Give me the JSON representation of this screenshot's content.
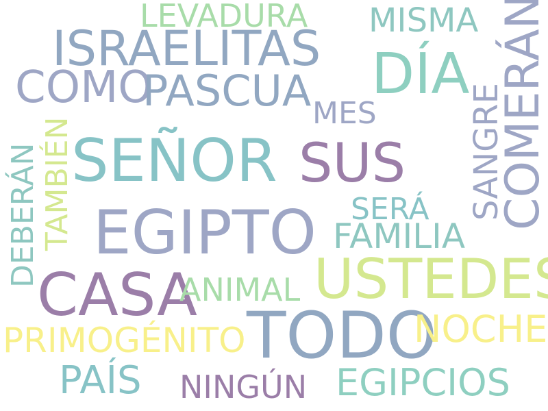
{
  "palette": {
    "teal": "#8ecfc0",
    "slate": "#91a7c1",
    "seafoam": "#8ec7c0",
    "purple": "#9b7ea8",
    "lavender": "#9ea6c5",
    "lime": "#d4e88f",
    "mint": "#a8dca9",
    "yellow": "#f8f08a",
    "aqua": "#87c3c6"
  },
  "words": {
    "levadura": "LEVADURA",
    "misma": "MISMA",
    "israelitas": "ISRAELITAS",
    "dia": "DÍA",
    "comeran": "COMERÁN",
    "como": "COMO",
    "pascua": "PASCUA",
    "mes": "MES",
    "sangre": "SANGRE",
    "tambien": "TAMBIÉN",
    "deberan": "DEBERÁN",
    "senor": "SEÑOR",
    "sus": "SUS",
    "egipto": "EGIPTO",
    "sera": "SERÁ",
    "familia": "FAMILIA",
    "casa": "CASA",
    "animal": "ANIMAL",
    "ustedes": "USTEDES",
    "todo": "TODO",
    "noche": "NOCHE",
    "primogenito": "PRIMOGÉNITO",
    "pais": "PAÍS",
    "ningun": "NINGÚN",
    "egipcios": "EGIPCIOS"
  }
}
